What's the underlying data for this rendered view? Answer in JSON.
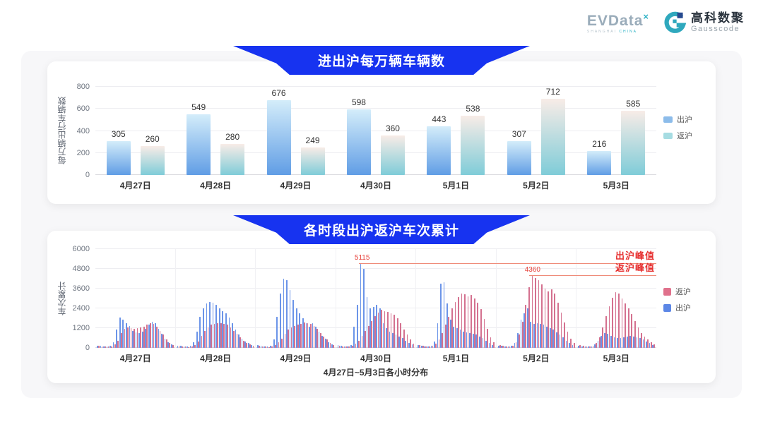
{
  "header": {
    "evdata_logo": {
      "text": "EVData",
      "sup": "×",
      "subtext_left": "SHANGHAI ",
      "subtext_right": "CHINA"
    },
    "gausscode_logo": {
      "cn": "高科数聚",
      "en": "Gausscode"
    }
  },
  "colors": {
    "banner_blue": "#1733f0",
    "panel_bg": "#f7f7f9",
    "chart1_out_top": "#d4edfa",
    "chart1_out_bottom": "#609de5",
    "chart1_ret_top": "#f8ece7",
    "chart1_ret_bottom": "#7fccd8",
    "chart1_legend_out": "#8cbcea",
    "chart1_legend_ret": "#a6dce2",
    "chart2_out": "#6b94e8",
    "chart2_ret": "#d4718f",
    "chart2_legend_ret": "#e0718c",
    "chart2_legend_out": "#5c87e6",
    "annotation_line": "#ef8b79",
    "annotation_text": "#e62f2f"
  },
  "chart_data": [
    {
      "type": "bar",
      "title": "进出沪每万辆车辆数",
      "ylabel": "每万辆出行车辆数",
      "ylim": [
        0,
        800
      ],
      "yticks": [
        0,
        200,
        400,
        600,
        800
      ],
      "grid": true,
      "legend_position": "right",
      "categories": [
        "4月27日",
        "4月28日",
        "4月29日",
        "4月30日",
        "5月1日",
        "5月2日",
        "5月3日"
      ],
      "series": [
        {
          "name": "出沪",
          "values": [
            305,
            549,
            676,
            598,
            443,
            307,
            216
          ],
          "gradient_top": "#d4edfa",
          "gradient_bottom": "#609de5",
          "legend_color": "#8cbcea"
        },
        {
          "name": "返沪",
          "values": [
            260,
            280,
            249,
            360,
            538,
            712,
            585
          ],
          "gradient_top": "#f8ece7",
          "gradient_bottom": "#7fccd8",
          "legend_color": "#a6dce2"
        }
      ]
    },
    {
      "type": "bar",
      "title": "各时段出沪返沪车次累计",
      "ylabel": "车次累计",
      "xlabel": "4月27日~5月3日各小时分布",
      "ylim": [
        0,
        6000
      ],
      "yticks": [
        0,
        1200,
        2400,
        3600,
        4800,
        6000
      ],
      "grid": true,
      "legend_position": "right",
      "categories": [
        "4月27日",
        "4月28日",
        "4月29日",
        "4月30日",
        "5月1日",
        "5月2日",
        "5月3日"
      ],
      "hours_per_day": 24,
      "series": [
        {
          "name": "返沪",
          "color": "#d4718f",
          "legend_color": "#e0718c",
          "values_by_day": [
            [
              120,
              90,
              80,
              70,
              90,
              200,
              450,
              900,
              1150,
              1250,
              1200,
              1150,
              1200,
              1250,
              1300,
              1400,
              1500,
              1450,
              1300,
              1050,
              800,
              500,
              300,
              160
            ],
            [
              110,
              90,
              70,
              60,
              80,
              180,
              400,
              750,
              1050,
              1250,
              1400,
              1450,
              1500,
              1480,
              1450,
              1400,
              1250,
              1050,
              850,
              650,
              450,
              320,
              220,
              130
            ],
            [
              110,
              90,
              70,
              60,
              80,
              180,
              350,
              550,
              850,
              1100,
              1250,
              1350,
              1400,
              1450,
              1550,
              1500,
              1450,
              1350,
              1150,
              900,
              700,
              500,
              300,
              160
            ],
            [
              130,
              100,
              80,
              70,
              110,
              250,
              450,
              750,
              1050,
              1350,
              1650,
              1950,
              2150,
              2300,
              2250,
              2200,
              2100,
              2000,
              1800,
              1500,
              1100,
              800,
              500,
              260
            ],
            [
              160,
              110,
              90,
              80,
              110,
              250,
              500,
              900,
              1400,
              1900,
              2400,
              2800,
              3100,
              3300,
              3250,
              3150,
              3200,
              3000,
              2750,
              2350,
              1750,
              1150,
              650,
              330
            ],
            [
              160,
              110,
              90,
              80,
              130,
              350,
              800,
              1600,
              2600,
              3700,
              4360,
              4250,
              4100,
              3850,
              3600,
              3450,
              3550,
              3300,
              2750,
              2150,
              1550,
              1000,
              550,
              280
            ],
            [
              160,
              110,
              90,
              80,
              110,
              280,
              650,
              1250,
              1950,
              2550,
              3050,
              3400,
              3300,
              3000,
              2700,
              2400,
              2050,
              1650,
              1250,
              900,
              700,
              500,
              350,
              200
            ]
          ]
        },
        {
          "name": "出沪",
          "color": "#6b94e8",
          "legend_color": "#5c87e6",
          "values_by_day": [
            [
              150,
              120,
              100,
              90,
              110,
              350,
              1100,
              1850,
              1700,
              1500,
              1350,
              1050,
              950,
              900,
              1000,
              1150,
              1400,
              1600,
              1500,
              1150,
              850,
              550,
              350,
              200
            ],
            [
              150,
              110,
              90,
              80,
              110,
              350,
              1000,
              1900,
              2400,
              2700,
              2800,
              2750,
              2600,
              2400,
              2250,
              2100,
              1850,
              1500,
              1100,
              800,
              550,
              400,
              280,
              180
            ],
            [
              160,
              110,
              90,
              80,
              130,
              500,
              1900,
              3300,
              4200,
              4100,
              3500,
              2900,
              2400,
              2100,
              1800,
              1500,
              1300,
              1500,
              1300,
              1000,
              750,
              550,
              350,
              200
            ],
            [
              180,
              130,
              100,
              90,
              160,
              1300,
              2600,
              5115,
              4800,
              3100,
              2400,
              2500,
              2600,
              2400,
              1500,
              1200,
              1000,
              900,
              800,
              700,
              600,
              450,
              300,
              200
            ],
            [
              160,
              110,
              90,
              80,
              120,
              400,
              1500,
              3900,
              4000,
              2700,
              1700,
              1300,
              1200,
              1100,
              1000,
              950,
              900,
              850,
              800,
              700,
              600,
              450,
              300,
              180
            ],
            [
              150,
              110,
              90,
              80,
              110,
              300,
              900,
              1700,
              2100,
              2400,
              1600,
              1450,
              1500,
              1450,
              1400,
              1300,
              1200,
              1100,
              950,
              800,
              650,
              450,
              300,
              180
            ],
            [
              130,
              100,
              80,
              70,
              90,
              200,
              450,
              750,
              900,
              850,
              750,
              650,
              600,
              620,
              650,
              700,
              750,
              700,
              650,
              600,
              500,
              400,
              280,
              160
            ]
          ]
        }
      ],
      "annotations": [
        {
          "value_label": "5115",
          "value": 5115,
          "day_index": 3,
          "hour": 7,
          "side_label": "出沪峰值"
        },
        {
          "value_label": "4360",
          "value": 4360,
          "day_index": 5,
          "hour": 10,
          "side_label": "返沪峰值"
        }
      ]
    }
  ]
}
